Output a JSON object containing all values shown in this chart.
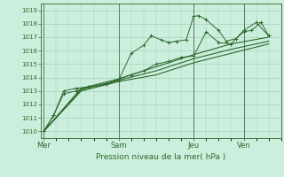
{
  "bg_color": "#cceedd",
  "grid_color": "#aaccbb",
  "line_color": "#2d6a2d",
  "vline_color": "#556655",
  "x_tick_labels": [
    "Mer",
    "Sam",
    "Jeu",
    "Ven"
  ],
  "x_tick_positions": [
    0,
    3,
    6,
    8
  ],
  "xlabel": "Pression niveau de la mer( hPa )",
  "ylim": [
    1009.5,
    1019.5
  ],
  "yticks": [
    1010,
    1011,
    1012,
    1013,
    1014,
    1015,
    1016,
    1017,
    1018,
    1019
  ],
  "xlim": [
    -0.1,
    9.5
  ],
  "series1_x": [
    0,
    0.4,
    0.8,
    1.3,
    1.8,
    2.5,
    3.0,
    3.5,
    4.0,
    4.3,
    4.7,
    5.0,
    5.3,
    5.7,
    6.0,
    6.2,
    6.5,
    7.0,
    7.3,
    7.7,
    8.0,
    8.3,
    8.7,
    9.0
  ],
  "series1_y": [
    1010.0,
    1011.2,
    1012.8,
    1013.0,
    1013.3,
    1013.5,
    1013.8,
    1015.8,
    1016.4,
    1017.1,
    1016.8,
    1016.6,
    1016.7,
    1016.8,
    1018.55,
    1018.6,
    1018.3,
    1017.5,
    1016.7,
    1016.9,
    1017.4,
    1017.5,
    1018.1,
    1017.1
  ],
  "series2_x": [
    0,
    0.4,
    0.8,
    1.3,
    1.8,
    2.5,
    3.0,
    3.5,
    4.0,
    4.5,
    5.0,
    5.5,
    6.0,
    6.5,
    7.0,
    7.5,
    8.0,
    8.5,
    9.0
  ],
  "series2_y": [
    1010.0,
    1011.2,
    1013.0,
    1013.2,
    1013.3,
    1013.5,
    1013.9,
    1014.2,
    1014.5,
    1015.0,
    1015.2,
    1015.5,
    1015.6,
    1017.4,
    1016.6,
    1016.5,
    1017.5,
    1018.1,
    1017.1
  ],
  "series3_x": [
    0,
    1.5,
    3.0,
    4.5,
    6.0,
    7.5,
    9.0
  ],
  "series3_y": [
    1010.0,
    1013.2,
    1013.9,
    1014.8,
    1015.7,
    1016.5,
    1017.0
  ],
  "series4_x": [
    0,
    1.5,
    3.0,
    4.5,
    6.0,
    7.5,
    9.0
  ],
  "series4_y": [
    1010.0,
    1013.1,
    1013.8,
    1014.5,
    1015.4,
    1016.1,
    1016.7
  ],
  "series5_x": [
    0,
    1.5,
    3.0,
    4.5,
    6.0,
    7.5,
    9.0
  ],
  "series5_y": [
    1010.0,
    1013.0,
    1013.7,
    1014.2,
    1015.1,
    1015.8,
    1016.5
  ]
}
